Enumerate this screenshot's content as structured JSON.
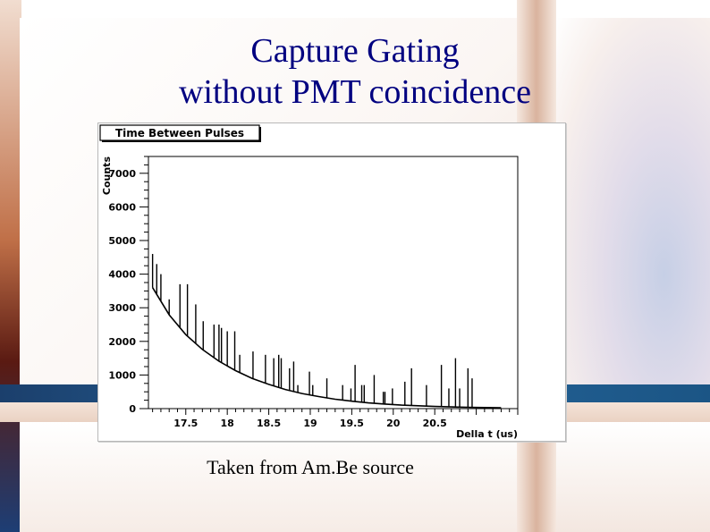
{
  "slide": {
    "title": "Capture Gating\nwithout PMT coincidence",
    "caption": "Taken from Am.Be source",
    "colors": {
      "title": "#000080",
      "band_blue": "#1f5f8f",
      "accent_brown": "#7a3a1c",
      "panel": "#ffffff"
    }
  },
  "chart_data": {
    "type": "bar",
    "title": "Time Between Pulses",
    "xlabel": "Della t (us)",
    "ylabel": "Counts",
    "xlim": [
      17.05,
      21.5
    ],
    "ylim": [
      0,
      7500
    ],
    "x_ticks": [
      17.5,
      18,
      18.5,
      19,
      19.5,
      20,
      20.5
    ],
    "x_tick_labels": [
      "17.5",
      "18",
      "18.5",
      "19",
      "19.5",
      "20",
      "20.5"
    ],
    "y_ticks": [
      0,
      1000,
      2000,
      3000,
      4000,
      5000,
      6000,
      7000
    ],
    "y_tick_labels": [
      "0",
      "1000",
      "2000",
      "3000",
      "4000",
      "5000",
      "6000",
      "7000"
    ],
    "grid": false,
    "legend": "none",
    "baseline": {
      "label": "exponential decay",
      "x": [
        17.1,
        17.3,
        17.5,
        17.7,
        17.9,
        18.1,
        18.3,
        18.5,
        18.7,
        18.9,
        19.1,
        19.3,
        19.5,
        19.7,
        19.9,
        20.1,
        20.3,
        20.5,
        20.7,
        20.9,
        21.1,
        21.3
      ],
      "y": [
        3600,
        2790,
        2200,
        1760,
        1410,
        1130,
        900,
        720,
        570,
        450,
        360,
        280,
        220,
        170,
        135,
        105,
        85,
        65,
        50,
        40,
        32,
        25
      ]
    },
    "spikes": {
      "x": [
        17.1,
        17.15,
        17.2,
        17.3,
        17.43,
        17.52,
        17.62,
        17.71,
        17.84,
        17.9,
        17.93,
        18.0,
        18.09,
        18.15,
        18.31,
        18.46,
        18.56,
        18.62,
        18.65,
        18.75,
        18.8,
        18.85,
        18.99,
        19.03,
        19.2,
        19.39,
        19.49,
        19.54,
        19.62,
        19.65,
        19.77,
        19.88,
        19.9,
        19.99,
        20.14,
        20.22,
        20.4,
        20.58,
        20.67,
        20.75,
        20.8,
        20.9,
        20.95
      ],
      "y": [
        4600,
        4300,
        4000,
        3250,
        3700,
        3700,
        3100,
        2600,
        2500,
        2500,
        2400,
        2300,
        2300,
        1600,
        1700,
        1600,
        1500,
        1600,
        1500,
        1200,
        1400,
        700,
        1100,
        700,
        900,
        700,
        600,
        1300,
        700,
        700,
        1000,
        500,
        500,
        600,
        800,
        1200,
        700,
        1300,
        600,
        1500,
        600,
        1200,
        900
      ]
    }
  }
}
